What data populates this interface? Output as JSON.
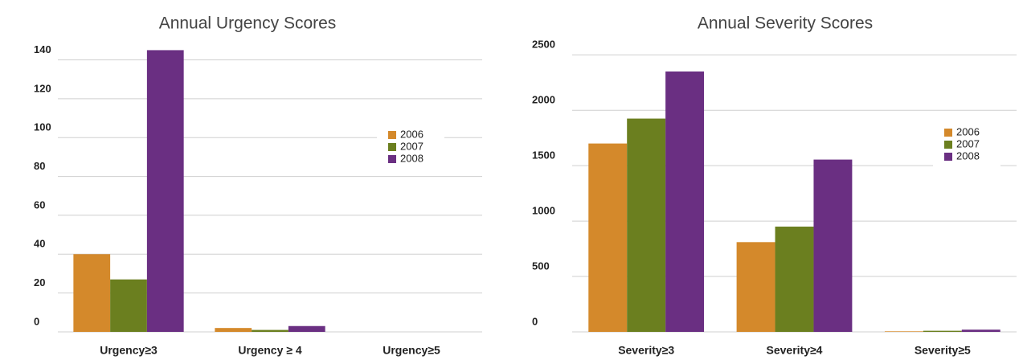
{
  "chart_data": [
    {
      "type": "bar",
      "title": "Annual Urgency Scores",
      "categories": [
        "Urgency≥3",
        "Urgency ≥ 4",
        "Urgency≥5"
      ],
      "series": [
        {
          "name": "2006",
          "color": "#d4892b",
          "values": [
            40,
            2,
            0
          ]
        },
        {
          "name": "2007",
          "color": "#6b7f1f",
          "values": [
            27,
            1,
            0
          ]
        },
        {
          "name": "2008",
          "color": "#6a2f82",
          "values": [
            145,
            3,
            0
          ]
        }
      ],
      "ylim": [
        0,
        146
      ],
      "yticks": [
        0,
        20,
        40,
        60,
        80,
        100,
        120,
        140
      ],
      "grid": true,
      "legend": "right"
    },
    {
      "type": "bar",
      "title": "Annual Severity Scores",
      "categories": [
        "Severity≥3",
        "Severity≥4",
        "Severity≥5"
      ],
      "series": [
        {
          "name": "2006",
          "color": "#d4892b",
          "values": [
            1700,
            810,
            5
          ]
        },
        {
          "name": "2007",
          "color": "#6b7f1f",
          "values": [
            1925,
            950,
            10
          ]
        },
        {
          "name": "2008",
          "color": "#6a2f82",
          "values": [
            2350,
            1555,
            20
          ]
        }
      ],
      "ylim": [
        0,
        2560
      ],
      "yticks": [
        0,
        500,
        1000,
        1500,
        2000,
        2500
      ],
      "grid": true,
      "legend": "right"
    }
  ]
}
